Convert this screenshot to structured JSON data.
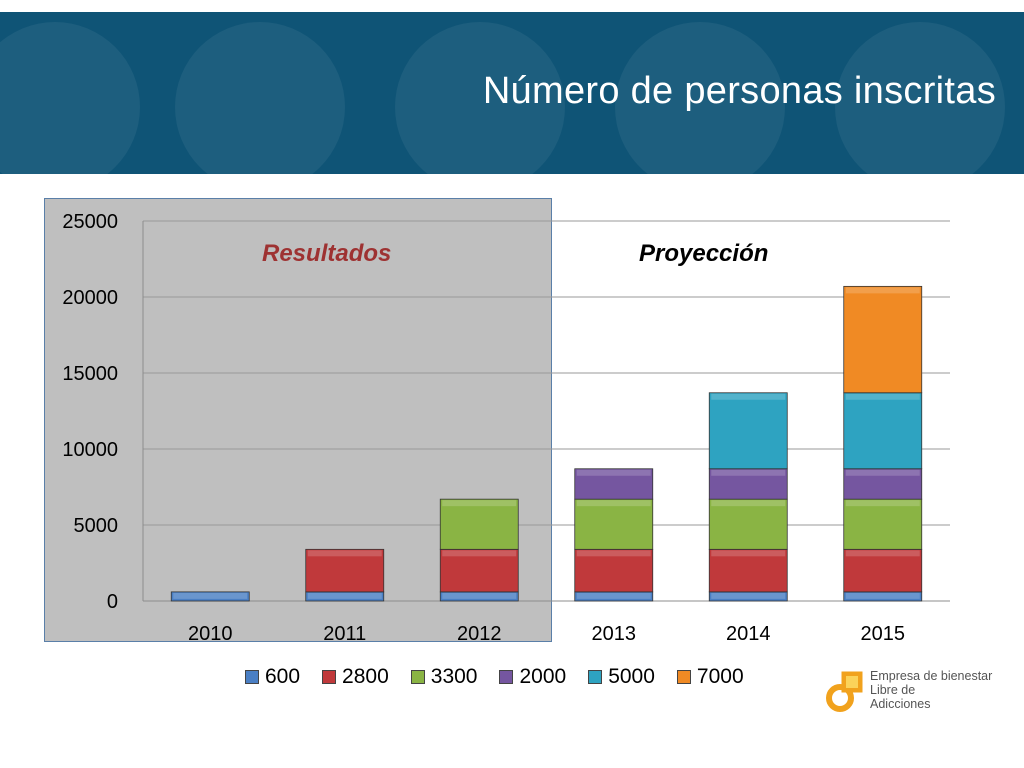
{
  "slide": {
    "title": "Número de personas inscritas",
    "note_results": "Resultados",
    "note_projection": "Proyección"
  },
  "logo": {
    "line1": "Empresa de bienestar",
    "line2": "Libre de",
    "line3": "Adicciones"
  },
  "chart_data": {
    "type": "bar",
    "stacked": true,
    "categories": [
      "2010",
      "2011",
      "2012",
      "2013",
      "2014",
      "2015"
    ],
    "series": [
      {
        "name": "600",
        "color": "#4a7fc4",
        "values": [
          600,
          600,
          600,
          600,
          600,
          600
        ]
      },
      {
        "name": "2800",
        "color": "#c0393b",
        "values": [
          0,
          2800,
          2800,
          2800,
          2800,
          2800
        ]
      },
      {
        "name": "3300",
        "color": "#8ab444",
        "values": [
          0,
          0,
          3300,
          3300,
          3300,
          3300
        ]
      },
      {
        "name": "2000",
        "color": "#7556a0",
        "values": [
          0,
          0,
          0,
          2000,
          2000,
          2000
        ]
      },
      {
        "name": "5000",
        "color": "#2ea3c1",
        "values": [
          0,
          0,
          0,
          0,
          5000,
          5000
        ]
      },
      {
        "name": "7000",
        "color": "#f08a24",
        "values": [
          0,
          0,
          0,
          0,
          0,
          7000
        ]
      }
    ],
    "yticks": [
      "0",
      "5000",
      "10000",
      "15000",
      "20000",
      "25000"
    ],
    "ylim": [
      0,
      25000
    ],
    "grid": true,
    "legend_position": "bottom"
  }
}
